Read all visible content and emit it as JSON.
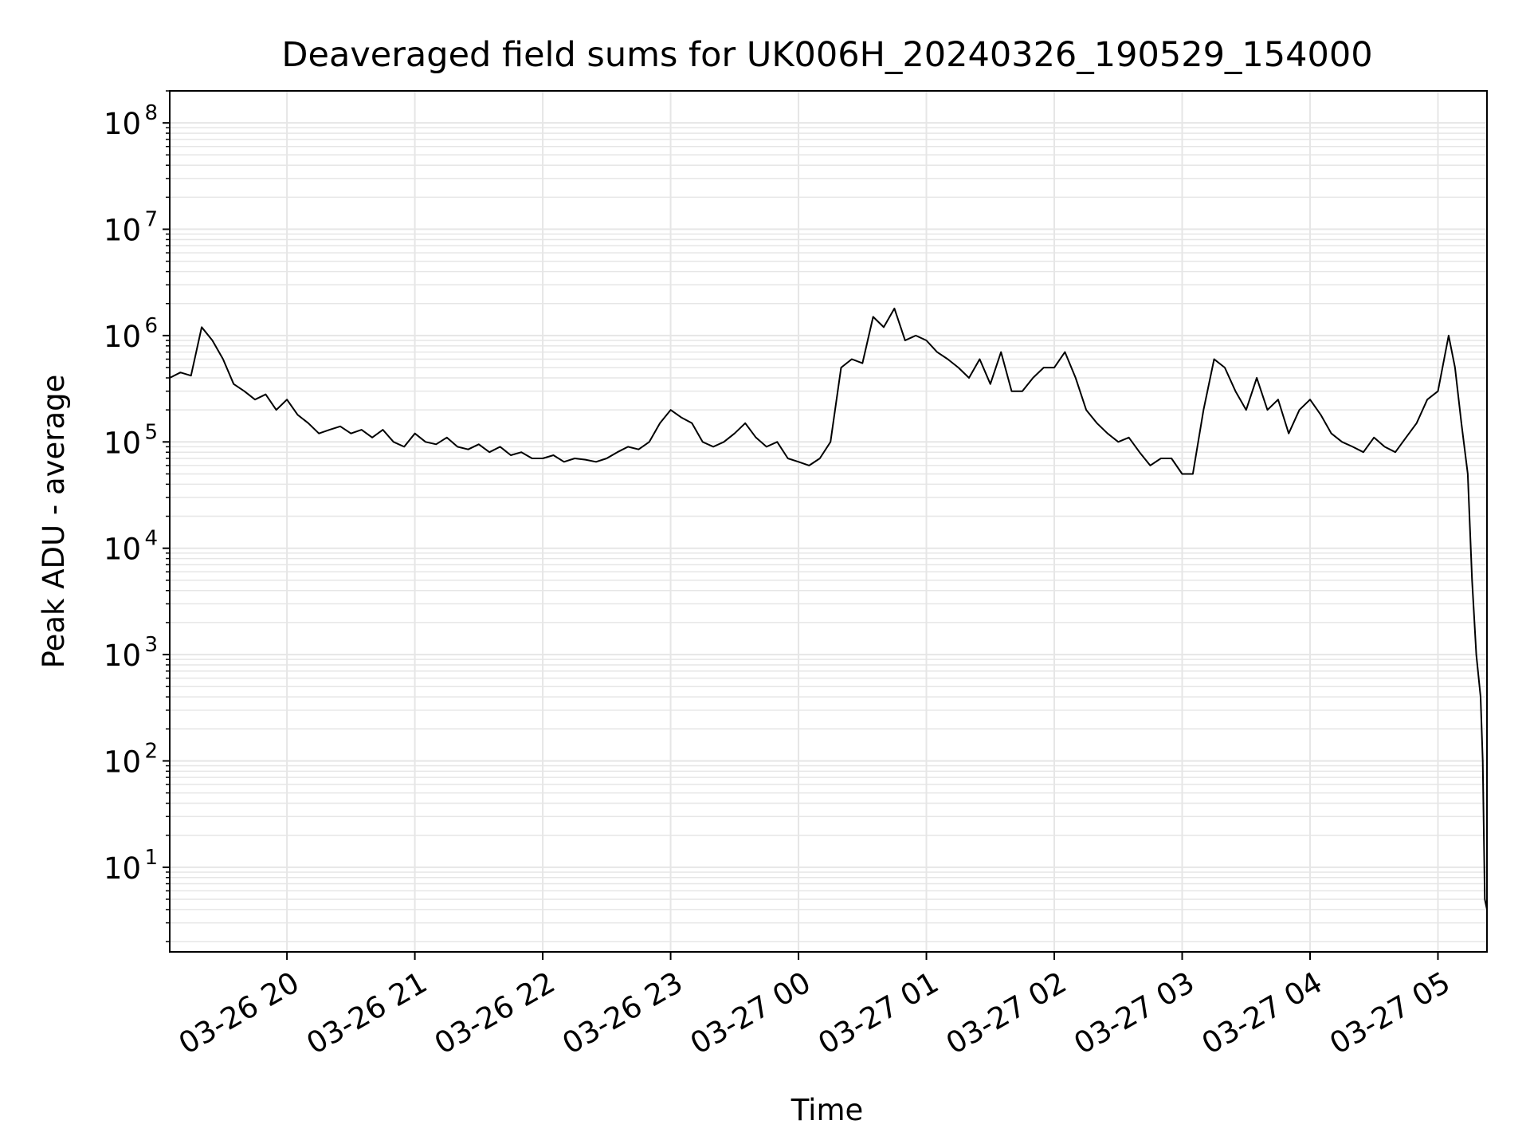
{
  "chart_data": {
    "type": "line",
    "title": "Deaveraged field sums for UK006H_20240326_190529_154000",
    "xlabel": "Time",
    "ylabel": "Peak ADU - average",
    "yscale": "log",
    "ylim": [
      1.6,
      200000000
    ],
    "xlim": [
      "2024-03-26 19:05",
      "2024-03-27 05:23"
    ],
    "grid": true,
    "line_color": "#000000",
    "grid_color": "#e6e6e6",
    "x_ticks": [
      {
        "value": "2024-03-26 20:00",
        "label": "03-26 20"
      },
      {
        "value": "2024-03-26 21:00",
        "label": "03-26 21"
      },
      {
        "value": "2024-03-26 22:00",
        "label": "03-26 22"
      },
      {
        "value": "2024-03-26 23:00",
        "label": "03-26 23"
      },
      {
        "value": "2024-03-27 00:00",
        "label": "03-27 00"
      },
      {
        "value": "2024-03-27 01:00",
        "label": "03-27 01"
      },
      {
        "value": "2024-03-27 02:00",
        "label": "03-27 02"
      },
      {
        "value": "2024-03-27 03:00",
        "label": "03-27 03"
      },
      {
        "value": "2024-03-27 04:00",
        "label": "03-27 04"
      },
      {
        "value": "2024-03-27 05:00",
        "label": "03-27 05"
      }
    ],
    "y_ticks": [
      {
        "value": 10,
        "base": "10",
        "exp": "1"
      },
      {
        "value": 100,
        "base": "10",
        "exp": "2"
      },
      {
        "value": 1000,
        "base": "10",
        "exp": "3"
      },
      {
        "value": 10000,
        "base": "10",
        "exp": "4"
      },
      {
        "value": 100000,
        "base": "10",
        "exp": "5"
      },
      {
        "value": 1000000,
        "base": "10",
        "exp": "6"
      },
      {
        "value": 10000000,
        "base": "10",
        "exp": "7"
      },
      {
        "value": 100000000,
        "base": "10",
        "exp": "8"
      }
    ],
    "series": [
      {
        "x": [
          "2024-03-26 19:05",
          "2024-03-26 19:10",
          "2024-03-26 19:15",
          "2024-03-26 19:20",
          "2024-03-26 19:25",
          "2024-03-26 19:30",
          "2024-03-26 19:35",
          "2024-03-26 19:40",
          "2024-03-26 19:45",
          "2024-03-26 19:50",
          "2024-03-26 19:55",
          "2024-03-26 20:00",
          "2024-03-26 20:05",
          "2024-03-26 20:10",
          "2024-03-26 20:15",
          "2024-03-26 20:20",
          "2024-03-26 20:25",
          "2024-03-26 20:30",
          "2024-03-26 20:35",
          "2024-03-26 20:40",
          "2024-03-26 20:45",
          "2024-03-26 20:50",
          "2024-03-26 20:55",
          "2024-03-26 21:00",
          "2024-03-26 21:05",
          "2024-03-26 21:10",
          "2024-03-26 21:15",
          "2024-03-26 21:20",
          "2024-03-26 21:25",
          "2024-03-26 21:30",
          "2024-03-26 21:35",
          "2024-03-26 21:40",
          "2024-03-26 21:45",
          "2024-03-26 21:50",
          "2024-03-26 21:55",
          "2024-03-26 22:00",
          "2024-03-26 22:05",
          "2024-03-26 22:10",
          "2024-03-26 22:15",
          "2024-03-26 22:20",
          "2024-03-26 22:25",
          "2024-03-26 22:30",
          "2024-03-26 22:35",
          "2024-03-26 22:40",
          "2024-03-26 22:45",
          "2024-03-26 22:50",
          "2024-03-26 22:55",
          "2024-03-26 23:00",
          "2024-03-26 23:05",
          "2024-03-26 23:10",
          "2024-03-26 23:15",
          "2024-03-26 23:20",
          "2024-03-26 23:25",
          "2024-03-26 23:30",
          "2024-03-26 23:35",
          "2024-03-26 23:40",
          "2024-03-26 23:45",
          "2024-03-26 23:50",
          "2024-03-26 23:55",
          "2024-03-27 00:00",
          "2024-03-27 00:05",
          "2024-03-27 00:10",
          "2024-03-27 00:15",
          "2024-03-27 00:20",
          "2024-03-27 00:25",
          "2024-03-27 00:30",
          "2024-03-27 00:35",
          "2024-03-27 00:40",
          "2024-03-27 00:45",
          "2024-03-27 00:50",
          "2024-03-27 00:55",
          "2024-03-27 01:00",
          "2024-03-27 01:05",
          "2024-03-27 01:10",
          "2024-03-27 01:15",
          "2024-03-27 01:20",
          "2024-03-27 01:25",
          "2024-03-27 01:30",
          "2024-03-27 01:35",
          "2024-03-27 01:40",
          "2024-03-27 01:45",
          "2024-03-27 01:50",
          "2024-03-27 01:55",
          "2024-03-27 02:00",
          "2024-03-27 02:05",
          "2024-03-27 02:10",
          "2024-03-27 02:15",
          "2024-03-27 02:20",
          "2024-03-27 02:25",
          "2024-03-27 02:30",
          "2024-03-27 02:35",
          "2024-03-27 02:40",
          "2024-03-27 02:45",
          "2024-03-27 02:50",
          "2024-03-27 02:55",
          "2024-03-27 03:00",
          "2024-03-27 03:05",
          "2024-03-27 03:10",
          "2024-03-27 03:15",
          "2024-03-27 03:20",
          "2024-03-27 03:25",
          "2024-03-27 03:30",
          "2024-03-27 03:35",
          "2024-03-27 03:40",
          "2024-03-27 03:45",
          "2024-03-27 03:50",
          "2024-03-27 03:55",
          "2024-03-27 04:00",
          "2024-03-27 04:05",
          "2024-03-27 04:10",
          "2024-03-27 04:15",
          "2024-03-27 04:20",
          "2024-03-27 04:25",
          "2024-03-27 04:30",
          "2024-03-27 04:35",
          "2024-03-27 04:40",
          "2024-03-27 04:45",
          "2024-03-27 04:50",
          "2024-03-27 04:55",
          "2024-03-27 05:00",
          "2024-03-27 05:05",
          "2024-03-27 05:08",
          "2024-03-27 05:11",
          "2024-03-27 05:14",
          "2024-03-27 05:16",
          "2024-03-27 05:18",
          "2024-03-27 05:20",
          "2024-03-27 05:21",
          "2024-03-27 05:22",
          "2024-03-27 05:23"
        ],
        "y": [
          400000,
          450000,
          420000,
          1200000,
          900000,
          600000,
          350000,
          300000,
          250000,
          280000,
          200000,
          250000,
          180000,
          150000,
          120000,
          130000,
          140000,
          120000,
          130000,
          110000,
          130000,
          100000,
          90000,
          120000,
          100000,
          95000,
          110000,
          90000,
          85000,
          95000,
          80000,
          90000,
          75000,
          80000,
          70000,
          70000,
          75000,
          65000,
          70000,
          68000,
          65000,
          70000,
          80000,
          90000,
          85000,
          100000,
          150000,
          200000,
          170000,
          150000,
          100000,
          90000,
          100000,
          120000,
          150000,
          110000,
          90000,
          100000,
          70000,
          65000,
          60000,
          70000,
          100000,
          500000,
          600000,
          550000,
          1500000,
          1200000,
          1800000,
          900000,
          1000000,
          900000,
          700000,
          600000,
          500000,
          400000,
          600000,
          350000,
          700000,
          300000,
          300000,
          400000,
          500000,
          500000,
          700000,
          400000,
          200000,
          150000,
          120000,
          100000,
          110000,
          80000,
          60000,
          70000,
          70000,
          50000,
          50000,
          200000,
          600000,
          500000,
          300000,
          200000,
          400000,
          200000,
          250000,
          120000,
          200000,
          250000,
          180000,
          120000,
          100000,
          90000,
          80000,
          110000,
          90000,
          80000,
          110000,
          150000,
          250000,
          300000,
          1000000,
          500000,
          150000,
          50000,
          5000,
          1000,
          400,
          100,
          5,
          4
        ]
      }
    ]
  }
}
